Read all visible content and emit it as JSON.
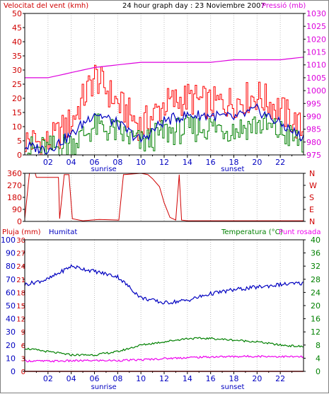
{
  "title": "24 hour graph day : 23 Noviembre 2007",
  "colors": {
    "wind": "#d00000",
    "gust": "#ff0000",
    "wind_dir": "#d00000",
    "pressure": "#dd00dd",
    "humidity": "#0000c0",
    "temperature": "#008000",
    "dewpoint": "#ee00ee",
    "rain": "#d00000",
    "axis": "#000000",
    "grid": "#c0c0c0"
  },
  "x_axis": {
    "ticks": [
      "02",
      "04",
      "06",
      "08",
      "10",
      "12",
      "14",
      "16",
      "18",
      "20",
      "22"
    ],
    "sunrise_label": "sunrise",
    "sunset_label": "sunset",
    "sunrise_hour": 6.8,
    "sunset_hour": 17.9
  },
  "chart_data": [
    {
      "type": "line",
      "id": "wind-pressure",
      "title": "24 hour graph day : 23 Noviembre 2007",
      "left_label": "Velocitat del vent (kmh)",
      "right_label": "Pressió (mb)",
      "left_ticks": [
        "0",
        "5",
        "10",
        "15",
        "20",
        "25",
        "30",
        "35",
        "40",
        "45",
        "50"
      ],
      "right_ticks": [
        "975",
        "980",
        "985",
        "990",
        "995",
        "1000",
        "1005",
        "1010",
        "1015",
        "1020",
        "1025",
        "1030"
      ],
      "ylim_left": [
        0,
        50
      ],
      "ylim_right": [
        975,
        1030
      ],
      "x": [
        0,
        2,
        4,
        6,
        8,
        10,
        12,
        14,
        16,
        18,
        20,
        22,
        24
      ],
      "series": [
        {
          "name": "Velocitat del vent (kmh)",
          "axis": "left",
          "style": "gust",
          "values": [
            5,
            4,
            12,
            28,
            18,
            10,
            18,
            20,
            18,
            19,
            21,
            16,
            8
          ]
        },
        {
          "name": "Velocitat del vent (kmh)",
          "axis": "left",
          "style": "mean",
          "values": [
            2,
            2,
            4,
            10,
            8,
            4,
            8,
            9,
            10,
            9,
            11,
            8,
            4
          ]
        },
        {
          "name": "wind-avg",
          "axis": "left",
          "style": "avg",
          "values": [
            3,
            2,
            7,
            15,
            11,
            5,
            12,
            14,
            14,
            13,
            16,
            11,
            6
          ]
        },
        {
          "name": "Pressió (mb)",
          "axis": "right",
          "values": [
            1005,
            1005,
            1007,
            1009,
            1010,
            1011,
            1011,
            1011,
            1011,
            1012,
            1012,
            1012,
            1013
          ]
        }
      ]
    },
    {
      "type": "line",
      "id": "wind-direction",
      "left_ticks": [
        "360",
        "270",
        "180",
        "90",
        "0"
      ],
      "right_ticks": [
        "N",
        "W",
        "S",
        "E",
        "N"
      ],
      "ylim": [
        0,
        360
      ],
      "x": [
        0,
        0.4,
        0.9,
        1.0,
        2.9,
        3.0,
        3.4,
        3.8,
        4.1,
        5.0,
        6.4,
        8.1,
        8.5,
        10.0,
        10.6,
        11.0,
        11.6,
        12.0,
        12.5,
        13.0,
        13.3,
        13.5,
        14.0,
        18.0,
        20.0,
        22.0,
        24.0
      ],
      "values": [
        20,
        360,
        360,
        330,
        330,
        20,
        350,
        350,
        20,
        5,
        15,
        10,
        350,
        360,
        350,
        320,
        260,
        140,
        30,
        10,
        350,
        10,
        5,
        5,
        5,
        5,
        5
      ]
    },
    {
      "type": "line",
      "id": "rain-humidity-temperature",
      "left_label_1": "Pluja (mm)",
      "left_label_2": "Humitat",
      "right_label_1": "Temperatura (°C)",
      "right_label_2": "Punt rosada",
      "left_ticks_outer": [
        "0",
        "10",
        "20",
        "30",
        "40",
        "50",
        "60",
        "70",
        "80",
        "90",
        "100"
      ],
      "left_ticks_inner": [
        "0",
        "3",
        "6",
        "9",
        "12",
        "15",
        "18",
        "21",
        "24",
        "27",
        "30"
      ],
      "right_ticks": [
        "0",
        "4",
        "8",
        "12",
        "16",
        "20",
        "24",
        "28",
        "32",
        "36",
        "40"
      ],
      "ylim_humidity": [
        0,
        100
      ],
      "ylim_rain": [
        0,
        30
      ],
      "ylim_temperature": [
        0,
        40
      ],
      "x": [
        0,
        2,
        4,
        6,
        8,
        10,
        12,
        14,
        16,
        18,
        20,
        22,
        24
      ],
      "series": [
        {
          "name": "Humitat",
          "axis": "humidity",
          "values": [
            66,
            70,
            80,
            76,
            72,
            56,
            52,
            54,
            59,
            62,
            64,
            66,
            67
          ]
        },
        {
          "name": "Temperatura (°C)",
          "axis": "temperature",
          "values": [
            7,
            6,
            5,
            5,
            6,
            8,
            9,
            10,
            10,
            9.5,
            9,
            8,
            7.5
          ]
        },
        {
          "name": "Punt rosada",
          "axis": "temperature",
          "values": [
            3.2,
            3.1,
            3.2,
            3.3,
            3.3,
            3.5,
            3.9,
            4.2,
            4.4,
            4.5,
            4.6,
            4.5,
            4.4
          ]
        },
        {
          "name": "Pluja (mm)",
          "axis": "rain",
          "values": [
            0,
            0,
            0,
            0,
            0,
            0,
            0,
            0,
            0,
            0,
            0,
            0,
            0
          ]
        }
      ]
    }
  ]
}
